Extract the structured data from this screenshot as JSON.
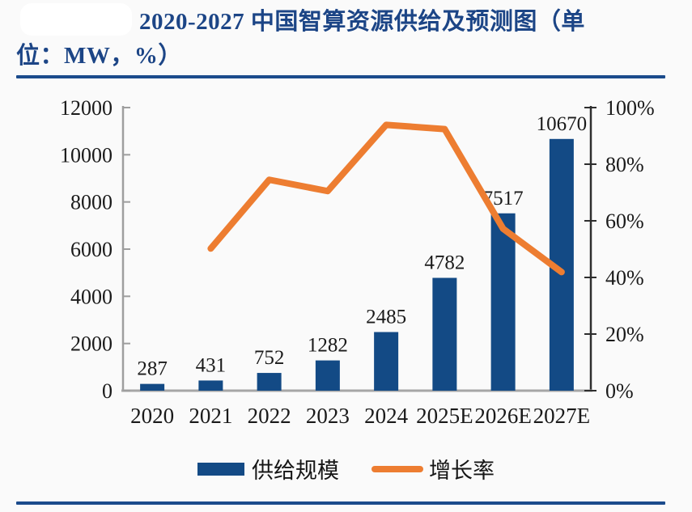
{
  "header": {
    "title_full": "2020-2027 中国智算资源供给及预测图（单位：MW，%）",
    "title_line1": "2020-2027 中国智算资源供给及预测图（单",
    "title_line2": "位：MW，%）"
  },
  "colors": {
    "accent_blue": "#1C4586",
    "rule_blue": "#1B4B8C",
    "bar_blue": "#134A85",
    "line_orange": "#ED7D31",
    "axis_gray": "#9E9E9E",
    "axis_dark": "#2E2E2E",
    "text_black": "#1A1A1A"
  },
  "chart_data": {
    "type": "bar",
    "title": "2020-2027 中国智算资源供给及预测图（单位：MW，%）",
    "categories": [
      "2020",
      "2021",
      "2022",
      "2023",
      "2024",
      "2025E",
      "2026E",
      "2027E"
    ],
    "series": [
      {
        "name": "供给规模",
        "type": "bar",
        "axis": "left",
        "unit": "MW",
        "color": "#134A85",
        "values": [
          287,
          431,
          752,
          1282,
          2485,
          4782,
          7517,
          10670
        ],
        "labels": [
          "287",
          "431",
          "752",
          "1282",
          "2485",
          "4782",
          "7517",
          "10670"
        ]
      },
      {
        "name": "增长率",
        "type": "line",
        "axis": "right",
        "unit": "%",
        "color": "#ED7D31",
        "values": [
          null,
          50.2,
          74.5,
          70.5,
          93.9,
          92.4,
          57.2,
          41.9
        ]
      }
    ],
    "left_axis": {
      "min": 0,
      "max": 12000,
      "tick_step": 2000,
      "tick_labels": [
        "0",
        "2000",
        "4000",
        "6000",
        "8000",
        "10000",
        "12000"
      ]
    },
    "right_axis": {
      "min": 0,
      "max": 100,
      "tick_step": 20,
      "tick_labels": [
        "0%",
        "20%",
        "40%",
        "60%",
        "80%",
        "100%"
      ]
    },
    "grid": false,
    "legend_position": "bottom"
  }
}
